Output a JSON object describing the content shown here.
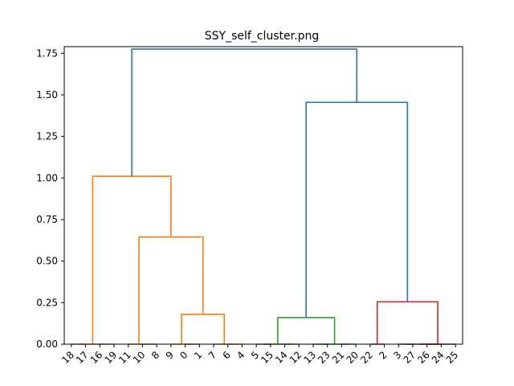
{
  "chart_data": {
    "type": "dendrogram",
    "title": "SSY_self_cluster.png",
    "xlabel": "",
    "ylabel": "",
    "ylim": [
      0,
      1.79
    ],
    "y_ticks": [
      "0.00",
      "0.25",
      "0.50",
      "0.75",
      "1.00",
      "1.25",
      "1.50",
      "1.75"
    ],
    "leaf_order": [
      "18",
      "17",
      "16",
      "19",
      "11",
      "10",
      "8",
      "9",
      "0",
      "1",
      "7",
      "6",
      "4",
      "5",
      "15",
      "14",
      "12",
      "13",
      "23",
      "21",
      "20",
      "22",
      "2",
      "3",
      "27",
      "26",
      "24",
      "25"
    ],
    "grid": false,
    "colors": {
      "cluster_orange": "#ff7f0e",
      "cluster_green": "#2ca02c",
      "cluster_red": "#d62728",
      "above_threshold": "#1f77b4"
    },
    "merges": [
      {
        "left": "18",
        "right": "17",
        "height": 0.0,
        "color": "cluster_orange"
      },
      {
        "left": "16",
        "right": "19",
        "height": 0.0,
        "color": "cluster_orange"
      },
      {
        "left": "18|17",
        "right": "16|19",
        "height": 0.0,
        "color": "cluster_orange"
      },
      {
        "left": "10",
        "right": "8",
        "height": 0.0,
        "color": "cluster_orange"
      },
      {
        "left": "11",
        "right": "10|8",
        "height": 0.0,
        "color": "cluster_orange"
      },
      {
        "left": "0",
        "right": "1",
        "height": 0.0,
        "color": "cluster_orange"
      },
      {
        "left": "6",
        "right": "4",
        "height": 0.0,
        "color": "cluster_orange"
      },
      {
        "left": "7",
        "right": "6|4",
        "height": 0.0,
        "color": "cluster_orange"
      },
      {
        "left": "9",
        "right": "0|1",
        "height": 0.0,
        "color": "cluster_orange"
      },
      {
        "left": "9|0|1",
        "right": "7|6|4",
        "height": 0.18,
        "color": "cluster_orange"
      },
      {
        "left": "11|10|8",
        "right": "9|0|1|7|6|4",
        "height": 0.645,
        "color": "cluster_orange"
      },
      {
        "left": "18|17|16|19",
        "right": "11|10|8|9|0|1|7|6|4",
        "height": 1.01,
        "color": "cluster_orange"
      },
      {
        "left": "5",
        "right": "15",
        "height": 0.0,
        "color": "cluster_green"
      },
      {
        "left": "14",
        "right": "12",
        "height": 0.0,
        "color": "cluster_green"
      },
      {
        "left": "5|15",
        "right": "14|12",
        "height": 0.0,
        "color": "cluster_green"
      },
      {
        "left": "13",
        "right": "23",
        "height": 0.0,
        "color": "cluster_green"
      },
      {
        "left": "21",
        "right": "20",
        "height": 0.0,
        "color": "cluster_green"
      },
      {
        "left": "13|23",
        "right": "21|20",
        "height": 0.0,
        "color": "cluster_green"
      },
      {
        "left": "5|15|14|12",
        "right": "13|23|21|20",
        "height": 0.16,
        "color": "cluster_green"
      },
      {
        "left": "22",
        "right": "2",
        "height": 0.0,
        "color": "cluster_red"
      },
      {
        "left": "3",
        "right": "27",
        "height": 0.0,
        "color": "cluster_red"
      },
      {
        "left": "26",
        "right": "24",
        "height": 0.0,
        "color": "cluster_red"
      },
      {
        "left": "3|27",
        "right": "26|24",
        "height": 0.0,
        "color": "cluster_red"
      },
      {
        "left": "3|27|26|24",
        "right": "25",
        "height": 0.0,
        "color": "cluster_red"
      },
      {
        "left": "22|2",
        "right": "3|27|26|24|25",
        "height": 0.255,
        "color": "cluster_red"
      },
      {
        "left": "5|15|14|12|13|23|21|20",
        "right": "22|2|3|27|26|24|25",
        "height": 1.455,
        "color": "above_threshold"
      },
      {
        "left": "18|17|16|19|11|10|8|9|0|1|7|6|4",
        "right": "5|15|14|12|13|23|21|20|22|2|3|27|26|24|25",
        "height": 1.775,
        "color": "above_threshold"
      }
    ]
  }
}
